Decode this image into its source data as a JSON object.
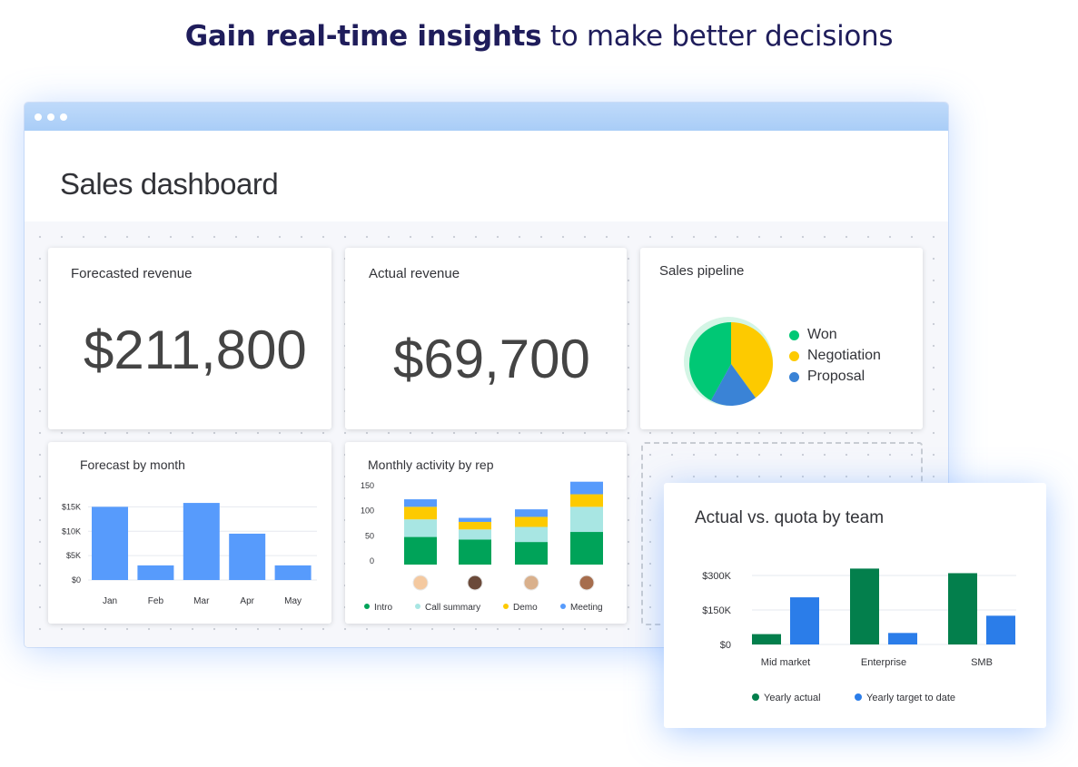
{
  "headline": {
    "bold": "Gain real-time insights",
    "rest": " to make better decisions"
  },
  "page": {
    "title": "Sales dashboard"
  },
  "cards": {
    "forecasted": {
      "title": "Forecasted revenue",
      "value": "$211,800"
    },
    "actual": {
      "title": "Actual revenue",
      "value": "$69,700"
    },
    "pipeline": {
      "title": "Sales pipeline",
      "legend": [
        "Won",
        "Negotiation",
        "Proposal"
      ]
    },
    "forecast_month": {
      "title": "Forecast by month"
    },
    "activity": {
      "title": "Monthly activity by rep"
    },
    "quota": {
      "title": "Actual vs. quota by team"
    }
  },
  "colors": {
    "won": "#00c875",
    "negotiation": "#fdca00",
    "proposal": "#3a83d6",
    "bar_blue": "#579bfc",
    "intro": "#00a359",
    "call_summary": "#a8e6e3",
    "demo": "#fdca00",
    "meeting": "#579bfc",
    "actual_green": "#037f4c",
    "target_blue": "#2b7de9"
  },
  "chart_data": [
    {
      "type": "pie",
      "categories": [
        "Won",
        "Negotiation",
        "Proposal"
      ],
      "values": [
        42,
        40,
        18
      ]
    },
    {
      "type": "bar",
      "categories": [
        "Jan",
        "Feb",
        "Mar",
        "Apr",
        "May"
      ],
      "values": [
        15000,
        3000,
        15800,
        9500,
        3000
      ],
      "yticks": [
        "$0",
        "$5K",
        "$10K",
        "$15K"
      ],
      "ylim": [
        0,
        16000
      ],
      "grid": true
    },
    {
      "type": "bar",
      "stacked": true,
      "categories": [
        "Rep 1",
        "Rep 2",
        "Rep 3",
        "Rep 4"
      ],
      "series": [
        {
          "name": "Intro",
          "values": [
            55,
            50,
            45,
            65
          ]
        },
        {
          "name": "Call summary",
          "values": [
            35,
            20,
            30,
            50
          ]
        },
        {
          "name": "Demo",
          "values": [
            25,
            15,
            20,
            25
          ]
        },
        {
          "name": "Meeting",
          "values": [
            15,
            8,
            15,
            25
          ]
        }
      ],
      "yticks": [
        "0",
        "50",
        "100",
        "150"
      ],
      "ylim": [
        0,
        150
      ]
    },
    {
      "type": "bar",
      "categories": [
        "Mid market",
        "Enterprise",
        "SMB"
      ],
      "series": [
        {
          "name": "Yearly actual",
          "values": [
            45000,
            330000,
            310000
          ]
        },
        {
          "name": "Yearly target to date",
          "values": [
            205000,
            50000,
            125000
          ]
        }
      ],
      "yticks": [
        "$0",
        "$150K",
        "$300K"
      ],
      "ylim": [
        0,
        340000
      ],
      "grid": true
    }
  ]
}
